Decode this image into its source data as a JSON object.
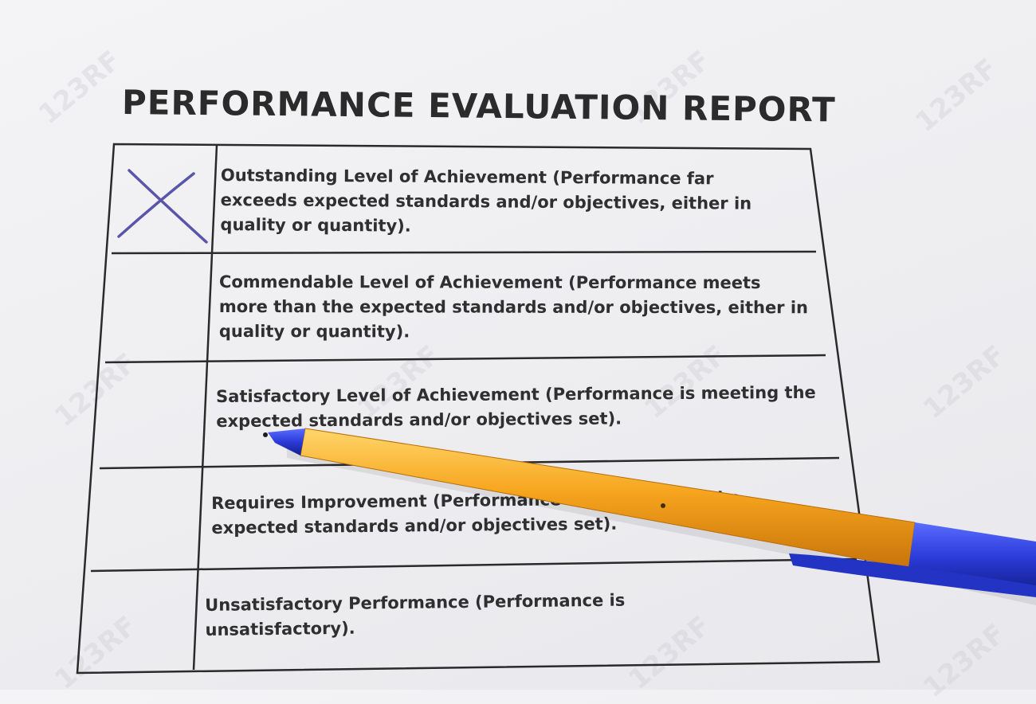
{
  "document": {
    "title": "PERFORMANCE EVALUATION REPORT",
    "rows": [
      {
        "text": "Outstanding Level of Achievement (Performance far exceeds expected standards and/or objectives, either in quality or quantity).",
        "checked": true
      },
      {
        "text": "Commendable Level of Achievement (Performance meets more than the expected standards and/or objectives, either in quality or quantity).",
        "checked": false
      },
      {
        "text": "Satisfactory Level of Achievement (Performance is meeting the expected standards and/or objectives set).",
        "checked": false
      },
      {
        "text": "Requires Improvement (Performance is not meeting the expected standards and/or objectives set).",
        "checked": false
      },
      {
        "text": "Unsatisfactory Performance (Performance is unsatisfactory).",
        "checked": false
      }
    ]
  },
  "colors": {
    "paper": "#f2f2f4",
    "ink": "#2f2f2f",
    "check_mark": "#5a55a8",
    "pen_body": "#f7a51e",
    "pen_cap": "#2a3bd8"
  },
  "watermark": {
    "text": "123RF"
  }
}
